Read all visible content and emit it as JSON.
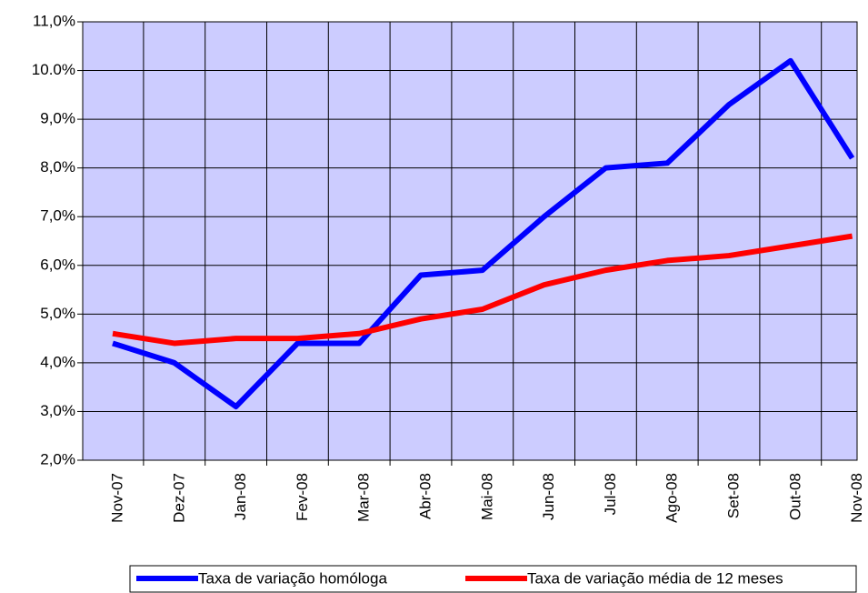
{
  "chart_data": {
    "type": "line",
    "categories": [
      "Nov-07",
      "Dez-07",
      "Jan-08",
      "Fev-08",
      "Mar-08",
      "Abr-08",
      "Mai-08",
      "Jun-08",
      "Jul-08",
      "Ago-08",
      "Set-08",
      "Out-08",
      "Nov-08"
    ],
    "series": [
      {
        "name": "Taxa de variação homóloga",
        "color": "#0000ff",
        "values": [
          4.4,
          4.0,
          3.1,
          4.4,
          4.4,
          5.8,
          5.9,
          7.0,
          8.0,
          8.1,
          9.3,
          10.2,
          8.2
        ]
      },
      {
        "name": "Taxa de variação média de 12 meses",
        "color": "#ff0000",
        "values": [
          4.6,
          4.4,
          4.5,
          4.5,
          4.6,
          4.9,
          5.1,
          5.6,
          5.9,
          6.1,
          6.2,
          6.4,
          6.6
        ]
      }
    ],
    "ylim": [
      2,
      11
    ],
    "yticks": [
      {
        "value": 2,
        "label": "2,0%"
      },
      {
        "value": 3,
        "label": "3,0%"
      },
      {
        "value": 4,
        "label": "4,0%"
      },
      {
        "value": 5,
        "label": "5,0%"
      },
      {
        "value": 6,
        "label": "6,0%"
      },
      {
        "value": 7,
        "label": "7,0%"
      },
      {
        "value": 8,
        "label": "8,0%"
      },
      {
        "value": 9,
        "label": "9,0%"
      },
      {
        "value": 10,
        "label": "10.0%"
      },
      {
        "value": 11,
        "label": "11,0%"
      }
    ],
    "grid": true,
    "legend": "bottom"
  }
}
